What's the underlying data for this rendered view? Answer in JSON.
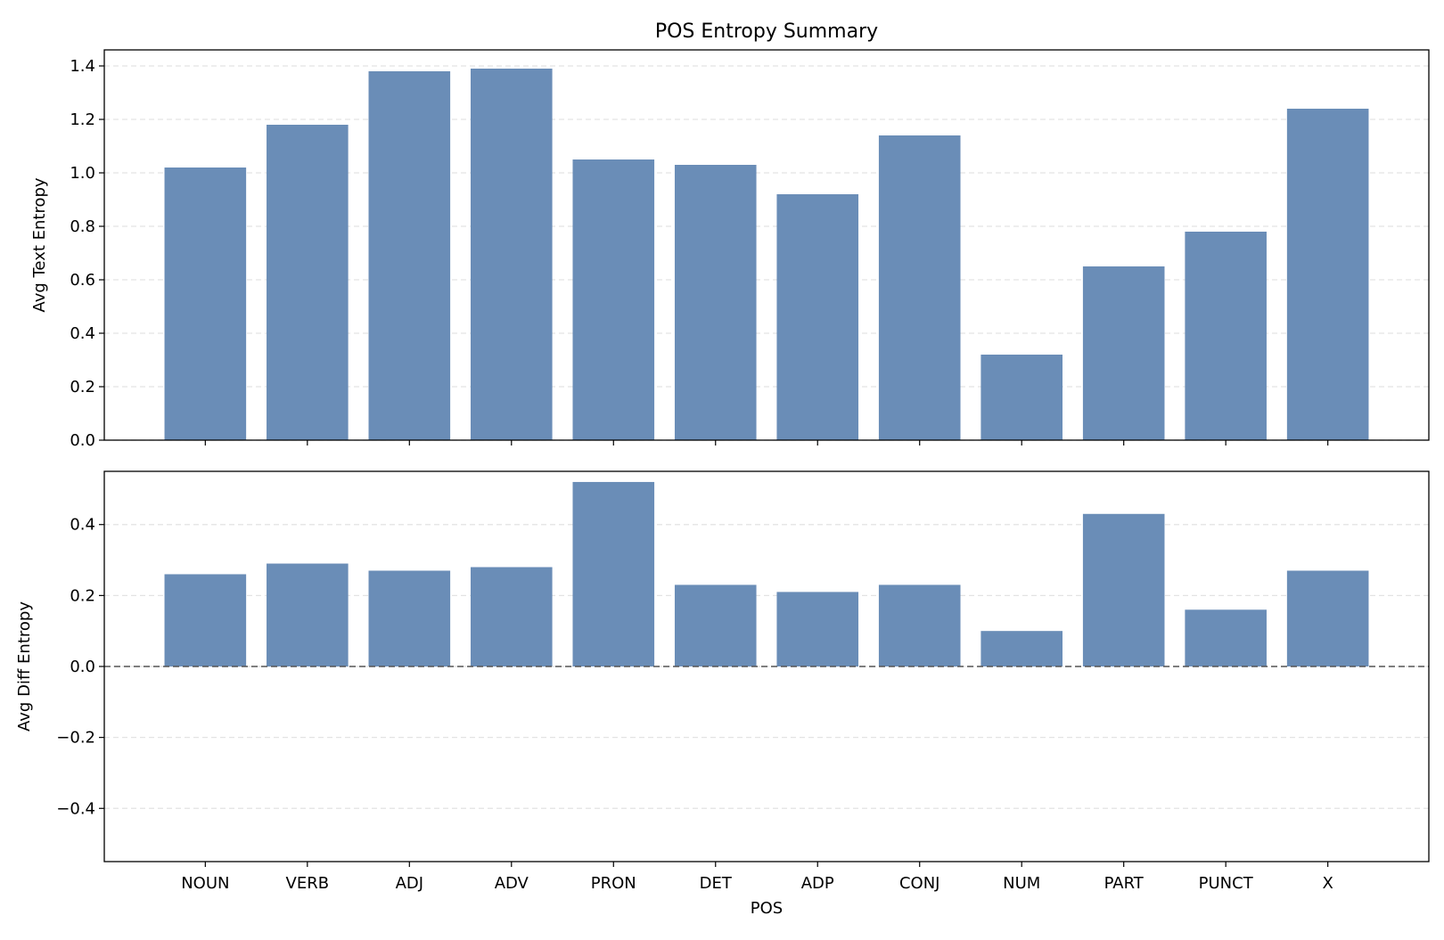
{
  "chart_data": [
    {
      "type": "bar",
      "title": "POS Entropy Summary",
      "categories": [
        "NOUN",
        "VERB",
        "ADJ",
        "ADV",
        "PRON",
        "DET",
        "ADP",
        "CONJ",
        "NUM",
        "PART",
        "PUNCT",
        "X"
      ],
      "values": [
        1.02,
        1.18,
        1.38,
        1.39,
        1.05,
        1.03,
        0.92,
        1.14,
        0.32,
        0.65,
        0.78,
        1.24
      ],
      "ylabel": "Avg Text Entropy",
      "xlabel": "",
      "ylim": [
        0,
        1.46
      ],
      "yticks": [
        0.0,
        0.2,
        0.4,
        0.6,
        0.8,
        1.0,
        1.2,
        1.4
      ],
      "ytick_labels": [
        "0.0",
        "0.2",
        "0.4",
        "0.6",
        "0.8",
        "1.0",
        "1.2",
        "1.4"
      ],
      "grid": "horizontal-dashed",
      "color": "#6a8db7"
    },
    {
      "type": "bar",
      "title": "",
      "categories": [
        "NOUN",
        "VERB",
        "ADJ",
        "ADV",
        "PRON",
        "DET",
        "ADP",
        "CONJ",
        "NUM",
        "PART",
        "PUNCT",
        "X"
      ],
      "values": [
        0.26,
        0.29,
        0.27,
        0.28,
        0.52,
        0.23,
        0.21,
        0.23,
        0.1,
        0.43,
        0.16,
        0.27
      ],
      "ylabel": "Avg Diff Entropy",
      "xlabel": "POS",
      "ylim": [
        -0.55,
        0.55
      ],
      "yticks": [
        -0.4,
        -0.2,
        0.0,
        0.2,
        0.4
      ],
      "ytick_labels": [
        "−0.4",
        "−0.2",
        "0.0",
        "0.2",
        "0.4"
      ],
      "reference_line": 0,
      "grid": "horizontal-dashed",
      "color": "#6a8db7"
    }
  ]
}
